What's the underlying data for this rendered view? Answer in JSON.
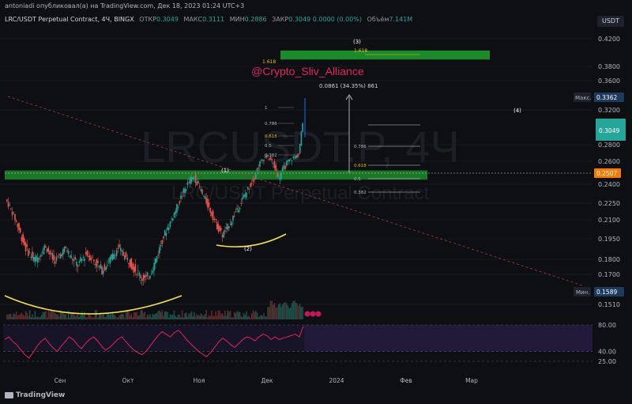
{
  "header": {
    "publisher_line": "antoniadi опубликовал(а) на TradingView.com, Дек 18, 2023 01:24 UTC+3",
    "symbol": "LRC/USDT Perpetual Contract, 4Ч, BINGX",
    "open_label": "ОТКР",
    "open_value": "0.3049",
    "high_label": "МАКС",
    "high_value": "0.3111",
    "low_label": "МИН",
    "low_value": "0.2886",
    "close_label": "ЗАКР",
    "close_value": "0.3049",
    "change_value": "0.0000 (0.00%)",
    "volume_label": "Объём",
    "volume_value": "7.141M",
    "currency_button": "USDT"
  },
  "watermark": {
    "ticker": "LRCUSDT.P, 4Ч",
    "name": "LRC/USDT Perpetual Contract"
  },
  "logo": "TradingView",
  "chart_data": [
    {
      "type": "line",
      "series_kind": "candlestick",
      "ylim": [
        0.145,
        0.43
      ],
      "y_ticks": [
        0.42,
        0.38,
        0.36,
        0.32,
        0.28,
        0.26,
        0.24,
        0.225,
        0.21,
        0.195,
        0.18,
        0.17,
        0.151
      ],
      "y_tick_labels": [
        "0.4200",
        "0.3800",
        "0.3600",
        "0.3200",
        "0.2800",
        "0.2600",
        "0.2400",
        "0.2250",
        "0.2100",
        "0.1950",
        "0.1800",
        "0.1700",
        "0.1510"
      ],
      "x_tick_labels": [
        "Сен",
        "Окт",
        "Ноя",
        "Дек",
        "2024",
        "Фев",
        "Мар"
      ],
      "price_path": [
        0.228,
        0.222,
        0.214,
        0.205,
        0.196,
        0.188,
        0.184,
        0.18,
        0.181,
        0.186,
        0.19,
        0.184,
        0.179,
        0.181,
        0.185,
        0.188,
        0.183,
        0.179,
        0.176,
        0.18,
        0.184,
        0.182,
        0.179,
        0.176,
        0.173,
        0.176,
        0.18,
        0.184,
        0.188,
        0.185,
        0.181,
        0.178,
        0.174,
        0.171,
        0.168,
        0.167,
        0.171,
        0.177,
        0.185,
        0.194,
        0.202,
        0.208,
        0.216,
        0.224,
        0.232,
        0.238,
        0.244,
        0.246,
        0.24,
        0.232,
        0.226,
        0.218,
        0.21,
        0.203,
        0.198,
        0.202,
        0.208,
        0.215,
        0.222,
        0.228,
        0.234,
        0.24,
        0.247,
        0.256,
        0.262,
        0.266,
        0.262,
        0.255,
        0.246,
        0.252,
        0.258,
        0.262,
        0.265,
        0.268,
        0.3049
      ],
      "labels": {
        "max": "Макс.",
        "max_value": "0.3362",
        "min": "Мин.",
        "min_value": "0.1589",
        "last_price": "0.3049",
        "current_price": "0.2507"
      },
      "annotations": {
        "channel_tag": "@Crypto_Sliv_Alliance",
        "wave_labels": [
          "(1)",
          "(2)",
          "(3)",
          "(4)"
        ],
        "measure": "0.0861 (34.35%) 861",
        "fib_small": [
          "1",
          "0.786",
          "0.618",
          "0.5",
          "0.382"
        ],
        "fib_right": [
          "0.786",
          "0.618",
          "0.5",
          "0.382"
        ],
        "fib_top": [
          "1.618",
          "1.618"
        ],
        "target_zone_low": 0.39,
        "target_zone_high": 0.403,
        "support_zone_low": 0.244,
        "support_zone_high": 0.252
      },
      "colors": {
        "up": "#26a69a",
        "down": "#ef5350",
        "zone": "#1b8a2a",
        "curve": "#f5e04a",
        "rsi": "#e0245e"
      }
    },
    {
      "type": "line",
      "series_kind": "rsi",
      "ylim": [
        20,
        85
      ],
      "y_ticks": [
        80.0,
        40.0,
        25.0
      ],
      "y_tick_labels": [
        "80.00",
        "40.00",
        "25.00"
      ],
      "values": [
        58,
        62,
        55,
        50,
        42,
        35,
        30,
        38,
        48,
        55,
        60,
        52,
        45,
        40,
        48,
        55,
        62,
        58,
        50,
        44,
        52,
        58,
        62,
        56,
        48,
        42,
        46,
        52,
        58,
        62,
        55,
        48,
        42,
        38,
        35,
        40,
        48,
        56,
        64,
        70,
        66,
        62,
        68,
        72,
        66,
        58,
        52,
        46,
        40,
        36,
        32,
        38,
        46,
        54,
        60,
        56,
        50,
        46,
        52,
        58,
        62,
        60,
        56,
        62,
        66,
        64,
        58,
        62,
        58,
        60,
        62,
        64,
        66,
        62,
        78
      ]
    }
  ]
}
